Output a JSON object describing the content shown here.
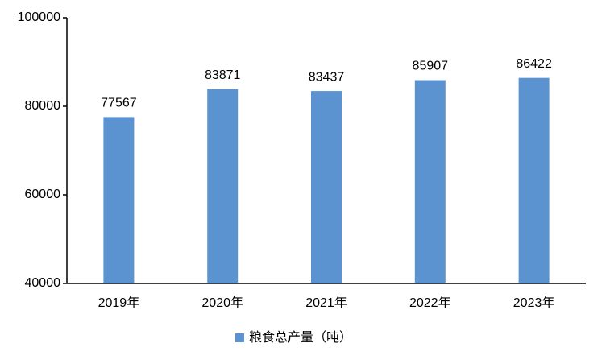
{
  "chart_data": {
    "type": "bar",
    "categories": [
      "2019年",
      "2020年",
      "2021年",
      "2022年",
      "2023年"
    ],
    "series": [
      {
        "name": "粮食总产量（吨）",
        "color": "#5b93d1",
        "values": [
          77567,
          83871,
          83437,
          85907,
          86422
        ]
      }
    ],
    "ylim": [
      40000,
      100000
    ],
    "yticks": [
      40000,
      60000,
      80000,
      100000
    ],
    "grid": false,
    "legend": "bottom"
  }
}
